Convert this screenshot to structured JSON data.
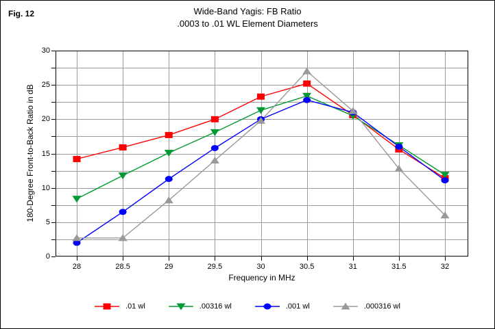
{
  "figure": {
    "label": "Fig. 12"
  },
  "chart_data": {
    "type": "line",
    "title": "Wide-Band Yagis: FB Ratio",
    "subtitle": ".0003 to .01 WL Element Diameters",
    "xlabel": "Frequency in MHz",
    "ylabel": "180-Degree Front-to-Back Ratio in dB",
    "x": [
      28,
      28.5,
      29,
      29.5,
      30,
      30.5,
      31,
      31.5,
      32
    ],
    "x_tick_labels": [
      "28",
      "28.5",
      "29",
      "29.5",
      "30",
      "30.5",
      "31",
      "31.5",
      "32"
    ],
    "y_ticks": [
      0,
      5,
      10,
      15,
      20,
      25,
      30
    ],
    "y_minor_step": 2.5,
    "ylim": [
      0,
      30
    ],
    "xlim": [
      28,
      32
    ],
    "grid": {
      "show": true,
      "color": "#9a9a9a"
    },
    "axis_color": "#000000",
    "legend_position": "bottom",
    "series": [
      {
        "name": ".01 wl",
        "color": "#ff0000",
        "marker": "square",
        "values": [
          14.2,
          15.9,
          17.7,
          20.0,
          23.3,
          25.2,
          20.6,
          15.6,
          11.4
        ]
      },
      {
        "name": ".00316 wl",
        "color": "#009933",
        "marker": "triangle-down",
        "values": [
          8.4,
          11.8,
          15.1,
          18.1,
          21.3,
          23.4,
          20.5,
          16.2,
          11.9
        ]
      },
      {
        "name": ".001 wl",
        "color": "#0000ff",
        "marker": "circle",
        "values": [
          2.0,
          6.5,
          11.3,
          15.8,
          20.0,
          22.8,
          21.0,
          16.0,
          11.1
        ]
      },
      {
        "name": ".000316 wl",
        "color": "#999999",
        "marker": "triangle-up",
        "values": [
          2.7,
          2.7,
          8.2,
          14.0,
          19.8,
          27.0,
          21.2,
          12.8,
          6.0
        ]
      }
    ]
  }
}
